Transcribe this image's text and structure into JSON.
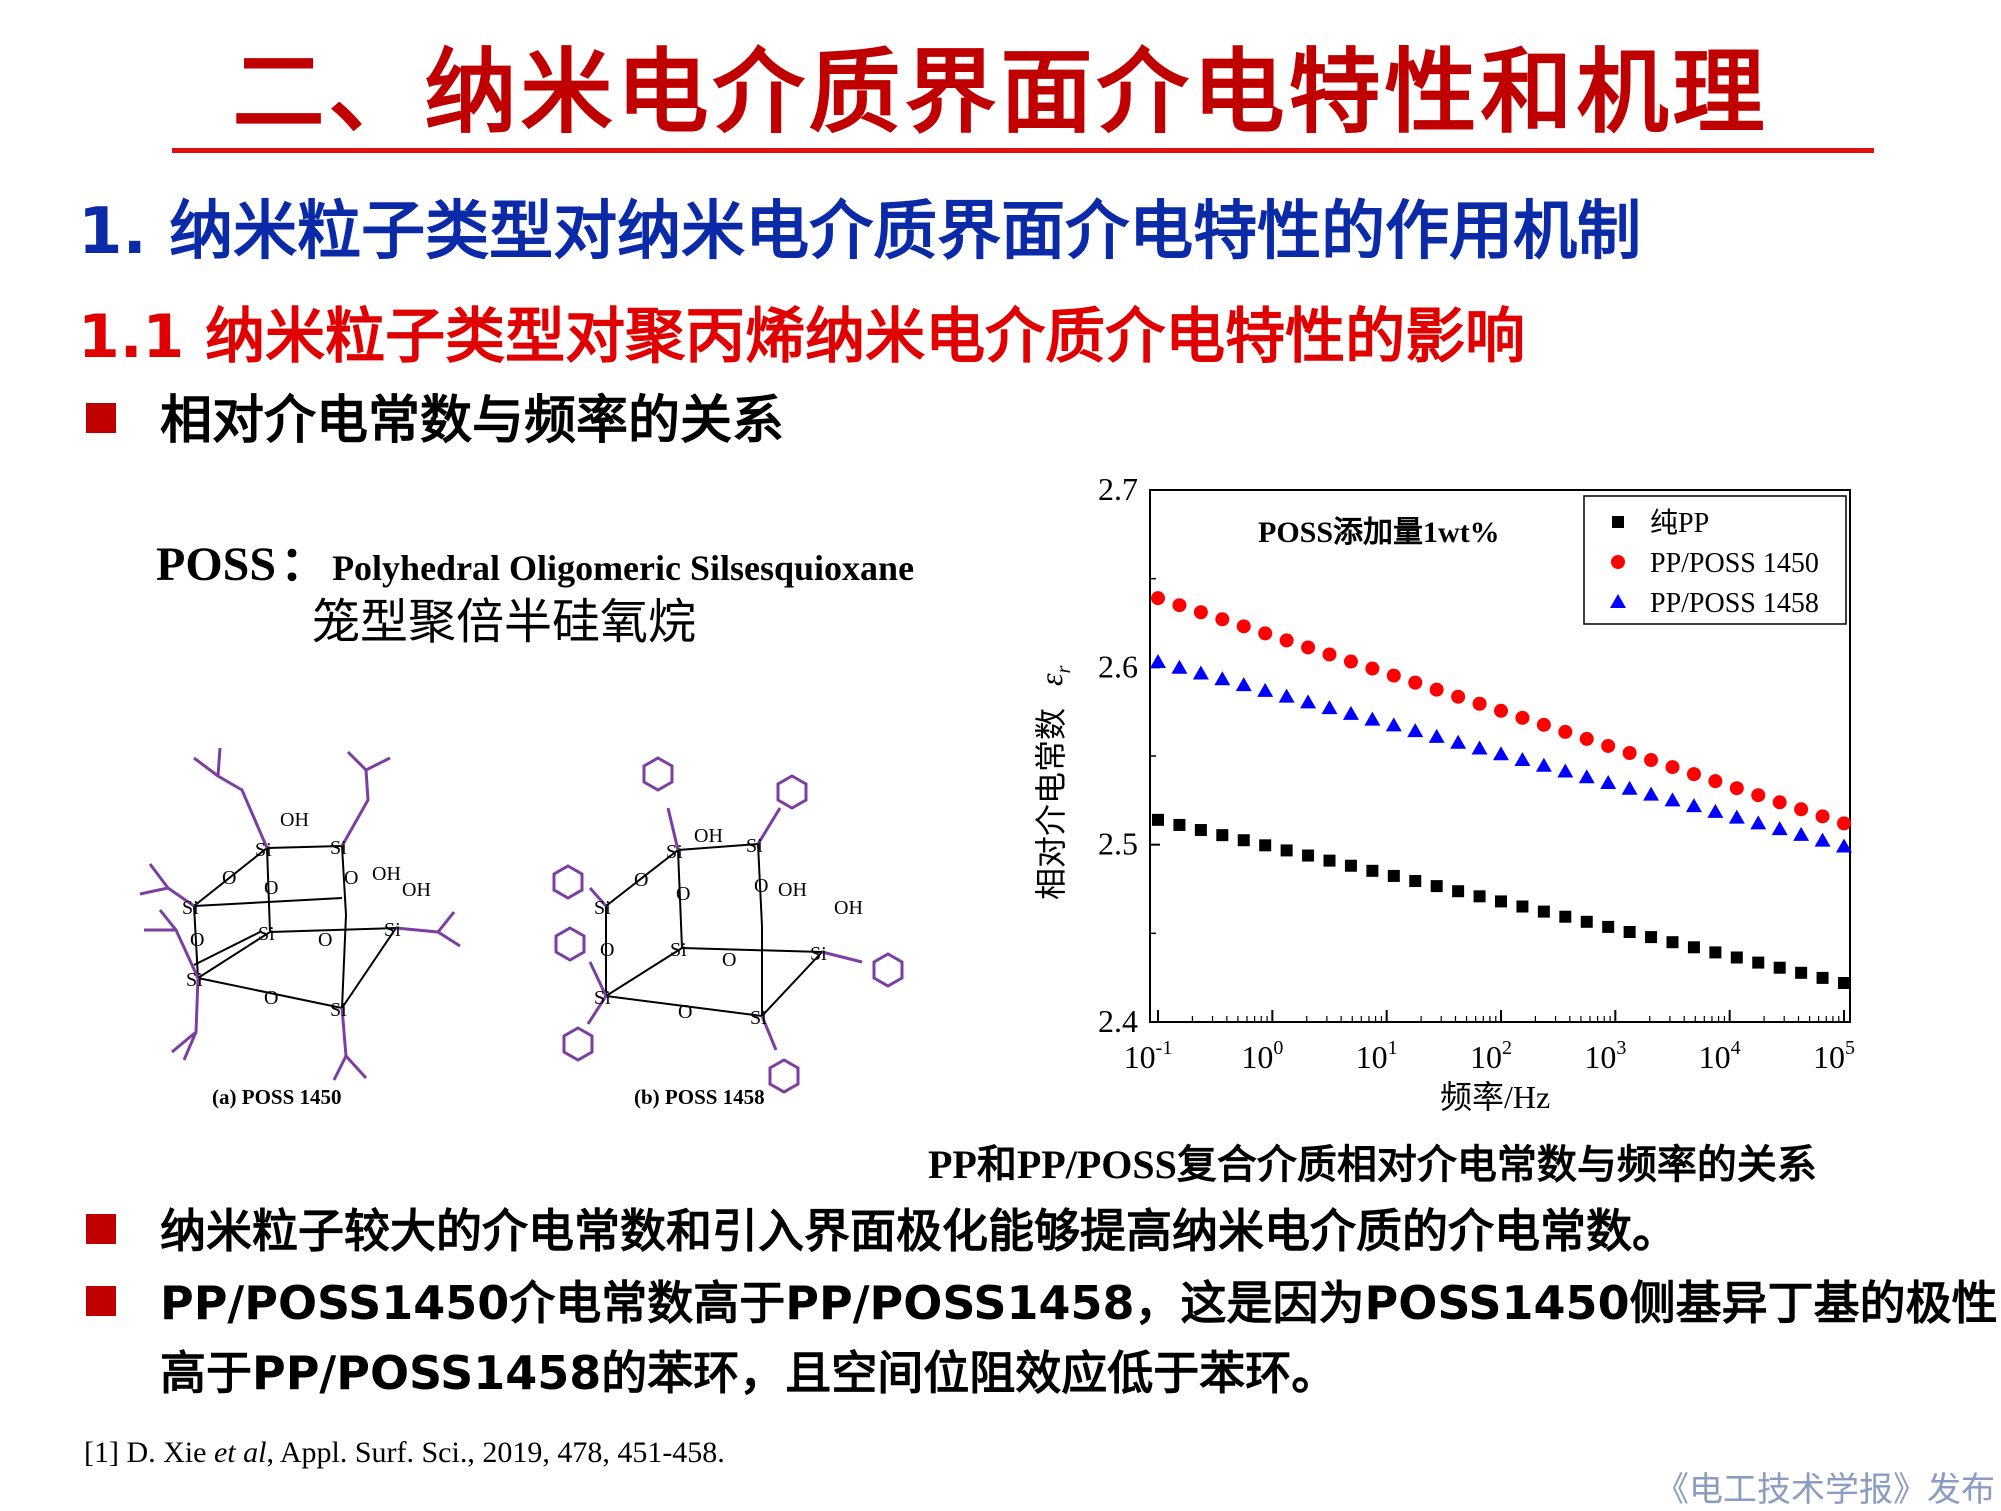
{
  "slide": {
    "title": "二、纳米电介质界面介电特性和机理",
    "heading1": "1. 纳米粒子类型对纳米电介质界面介电特性的作用机制",
    "heading2": "1.1 纳米粒子类型对聚丙烯纳米电介质介电特性的影响",
    "bullet_top": "相对介电常数与频率的关系"
  },
  "poss": {
    "abbr": "POSS",
    "colon": "：",
    "full_name": "Polyhedral Oligomeric Silsesquioxane",
    "chinese_name": "笼型聚倍半硅氧烷",
    "label_a": "(a) POSS 1450",
    "label_b": "(b) POSS 1458",
    "atoms": {
      "si": "Si",
      "o": "O",
      "oh": "OH"
    }
  },
  "chart_caption": "PP和PP/POSS复合介质相对介电常数与频率的关系",
  "chart_data": {
    "type": "scatter",
    "annotation": "POSS添加量1wt%",
    "xlabel": "频率/Hz",
    "ylabel": "相对介电常数",
    "ylabel_symbol": "ε",
    "ylabel_symbol_sub": "r",
    "x_scale": "log",
    "xlim": [
      0.1,
      100000
    ],
    "ylim": [
      2.4,
      2.7
    ],
    "x_ticks": [
      {
        "base": "10",
        "exp": "-1"
      },
      {
        "base": "10",
        "exp": "0"
      },
      {
        "base": "10",
        "exp": "1"
      },
      {
        "base": "10",
        "exp": "2"
      },
      {
        "base": "10",
        "exp": "3"
      },
      {
        "base": "10",
        "exp": "4"
      },
      {
        "base": "10",
        "exp": "5"
      }
    ],
    "y_ticks": [
      "2.4",
      "2.5",
      "2.6",
      "2.7"
    ],
    "legend_position": "top-right",
    "grid": false,
    "series": [
      {
        "name": "纯PP",
        "marker": "square",
        "color": "#000000",
        "start": 2.514,
        "end": 2.422
      },
      {
        "name": "PP/POSS 1450",
        "marker": "circle",
        "color": "#ff0000",
        "start": 2.639,
        "end": 2.512
      },
      {
        "name": "PP/POSS 1458",
        "marker": "triangle",
        "color": "#0000ff",
        "start": 2.603,
        "end": 2.499
      }
    ]
  },
  "bullets": [
    {
      "lines": [
        "纳米粒子较大的介电常数和引入界面极化能够提高纳米电介质的介电常数。"
      ]
    },
    {
      "lines": [
        "PP/POSS1450介电常数高于PP/POSS1458，这是因为POSS1450侧基异丁基的极性",
        "高于PP/POSS1458的苯环，且空间位阻效应低于苯环。"
      ]
    }
  ],
  "reference": {
    "prefix": "[1] D. Xie ",
    "etal": "et al",
    "suffix": ", Appl. Surf. Sci., 2019, 478, 451-458."
  },
  "publisher": "《电工技术学报》发布",
  "colors": {
    "title": "#c00000",
    "heading1": "#0b2aa8",
    "heading2": "#e00000",
    "bullet": "#c00000",
    "molecule_group": "#7b3fa0"
  }
}
